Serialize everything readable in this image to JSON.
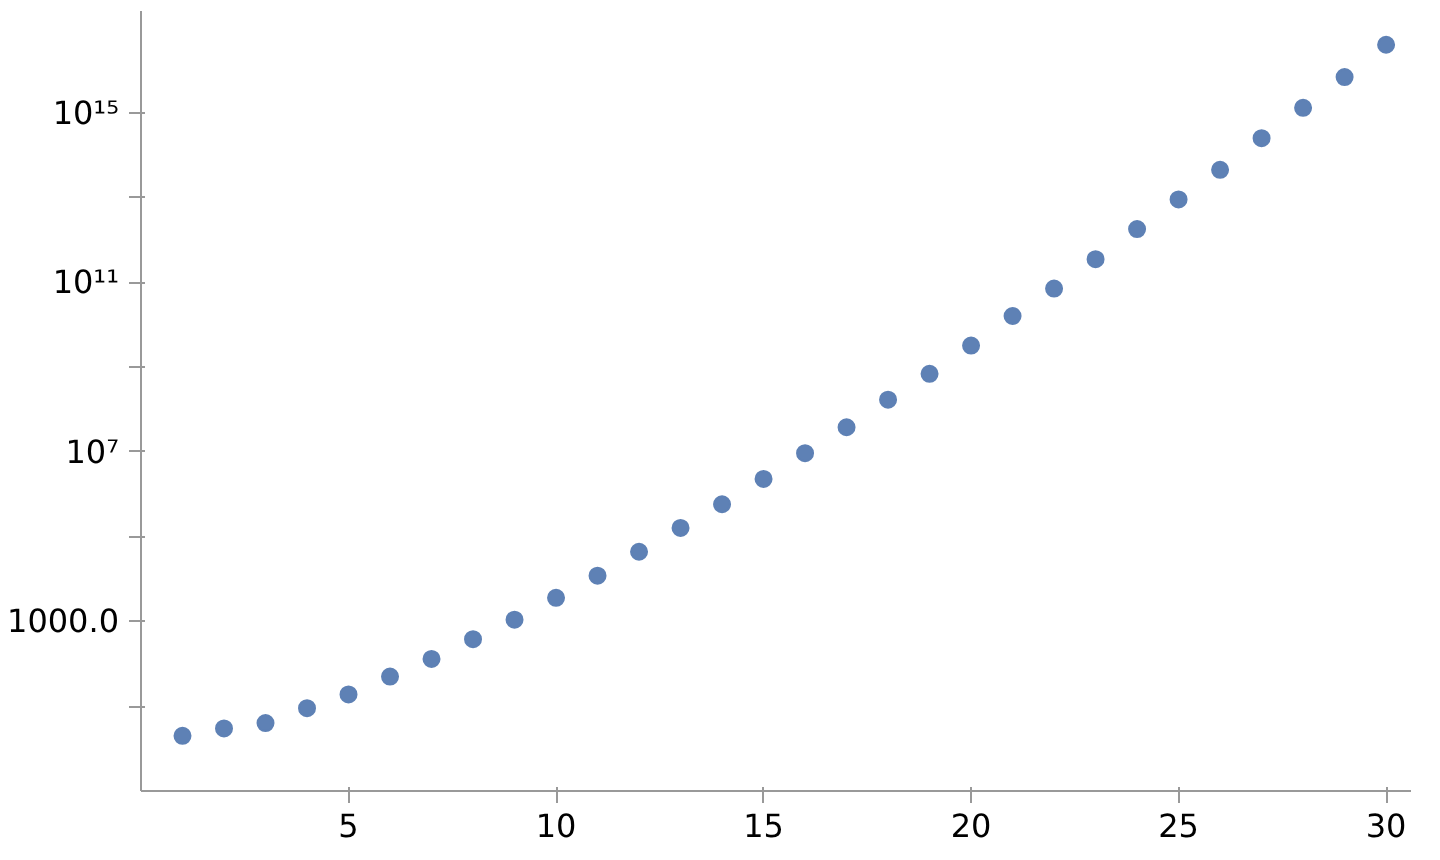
{
  "chart_data": {
    "type": "scatter",
    "x": [
      1,
      2,
      3,
      4,
      5,
      6,
      7,
      8,
      9,
      10,
      11,
      12,
      13,
      14,
      15,
      16,
      17,
      18,
      19,
      20,
      21,
      22,
      23,
      24,
      25,
      26,
      27,
      28,
      29,
      30
    ],
    "series": [
      {
        "color": "#5e81b5",
        "values": [
          2,
          3,
          4,
          9,
          19,
          50,
          130,
          380,
          1100,
          3600,
          12000,
          44000,
          160000,
          580000,
          2300000,
          9300000,
          38000000,
          170000000,
          690000000,
          3200000000,
          16000000000,
          71000000000,
          350000000000,
          1800000000000,
          9000000000000,
          45000000000000,
          250000000000000,
          1300000000000000,
          6900000000000000,
          40000000000000000
        ]
      }
    ],
    "log": "y",
    "xlim": [
      0,
      30.6
    ],
    "ylim": [
      0.1,
      250000000000000000
    ],
    "xticks": [
      5,
      10,
      15,
      20,
      25,
      30
    ],
    "yticks": [
      {
        "value": 10,
        "label": null
      },
      {
        "value": 1000,
        "label": "1000.0"
      },
      {
        "value": 100000,
        "label": null
      },
      {
        "value": 10000000,
        "label": "10⁷"
      },
      {
        "value": 1000000000,
        "label": null
      },
      {
        "value": 100000000000,
        "label": "10¹¹"
      },
      {
        "value": 10000000000000,
        "label": null
      },
      {
        "value": 1000000000000000,
        "label": "10¹⁵"
      }
    ],
    "marker": "circle",
    "grid": false
  }
}
